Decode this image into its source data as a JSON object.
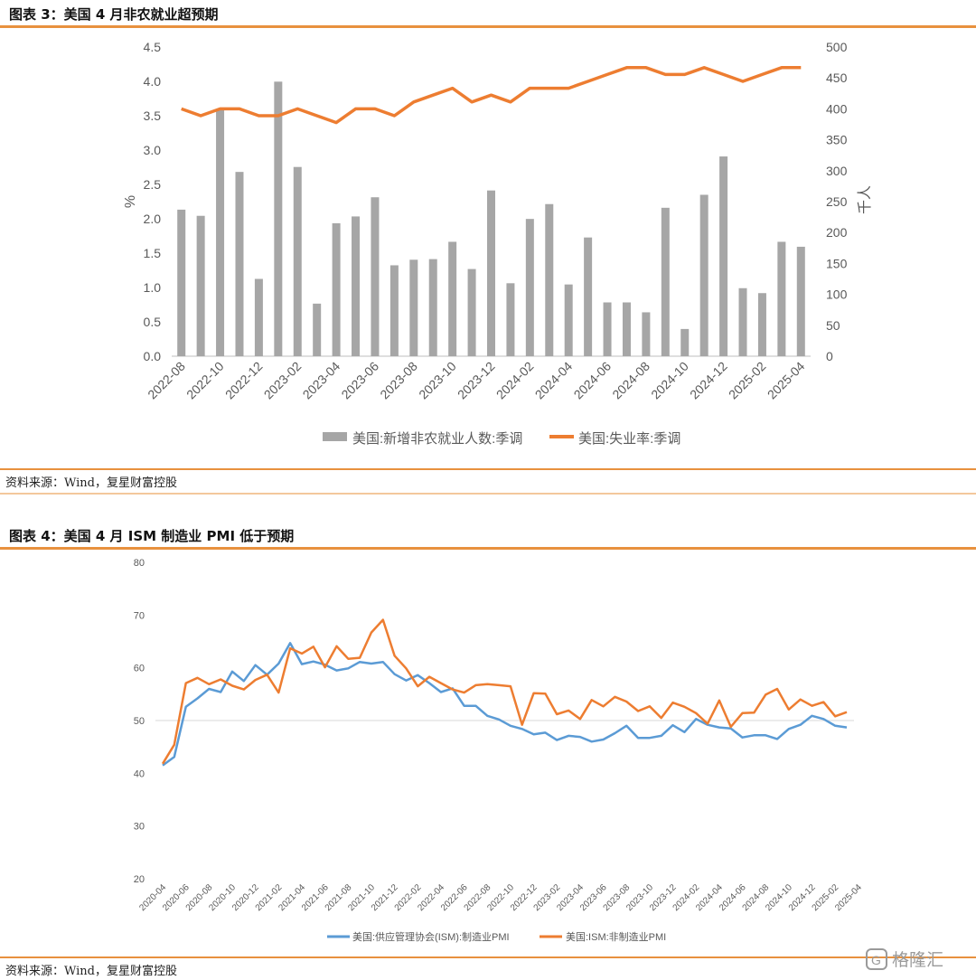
{
  "figure3": {
    "title": "图表 3：美国 4 月非农就业超预期",
    "source": "资料来源：Wind，复星财富控股",
    "chart_data": {
      "type": "bar+line",
      "y_left_label": "%",
      "y_right_label": "千人",
      "y_left_ticks": [
        "0.0",
        "0.5",
        "1.0",
        "1.5",
        "2.0",
        "2.5",
        "3.0",
        "3.5",
        "4.0",
        "4.5"
      ],
      "y_right_ticks": [
        "0",
        "50",
        "100",
        "150",
        "200",
        "250",
        "300",
        "350",
        "400",
        "450",
        "500"
      ],
      "ylim_left": [
        0,
        4.5
      ],
      "ylim_right": [
        0,
        500
      ],
      "x_tick_labels": [
        "2022-08",
        "2022-10",
        "2022-12",
        "2023-02",
        "2023-04",
        "2023-06",
        "2023-08",
        "2023-10",
        "2023-12",
        "2024-02",
        "2024-04",
        "2024-06",
        "2024-08",
        "2024-10",
        "2024-12",
        "2025-02",
        "2025-04"
      ],
      "categories": [
        "2022-08",
        "2022-09",
        "2022-10",
        "2022-11",
        "2022-12",
        "2023-01",
        "2023-02",
        "2023-03",
        "2023-04",
        "2023-05",
        "2023-06",
        "2023-07",
        "2023-08",
        "2023-09",
        "2023-10",
        "2023-11",
        "2023-12",
        "2024-01",
        "2024-02",
        "2024-03",
        "2024-04",
        "2024-05",
        "2024-06",
        "2024-07",
        "2024-08",
        "2024-09",
        "2024-10",
        "2024-11",
        "2024-12",
        "2025-01",
        "2025-02",
        "2025-03",
        "2025-04"
      ],
      "bars": {
        "name": "美国:新增非农就业人数:季调",
        "axis": "right",
        "color": "#A6A6A6",
        "values": [
          237,
          227,
          400,
          298,
          125,
          444,
          306,
          85,
          215,
          226,
          257,
          147,
          156,
          157,
          185,
          141,
          268,
          118,
          222,
          246,
          116,
          192,
          87,
          87,
          71,
          240,
          44,
          261,
          323,
          110,
          102,
          185,
          177
        ]
      },
      "line": {
        "name": "美国:失业率:季调",
        "axis": "left",
        "color": "#ED7D31",
        "values": [
          3.6,
          3.5,
          3.6,
          3.6,
          3.5,
          3.5,
          3.6,
          3.5,
          3.4,
          3.6,
          3.6,
          3.5,
          3.7,
          3.8,
          3.9,
          3.7,
          3.8,
          3.7,
          3.9,
          3.9,
          3.9,
          4.0,
          4.1,
          4.2,
          4.2,
          4.1,
          4.1,
          4.2,
          4.1,
          4.0,
          4.1,
          4.2,
          4.2
        ]
      }
    }
  },
  "figure4": {
    "title": "图表 4：美国 4 月 ISM 制造业 PMI 低于预期",
    "source": "资料来源：Wind，复星财富控股",
    "chart_data": {
      "type": "line",
      "y_ticks": [
        "20",
        "30",
        "40",
        "50",
        "60",
        "70",
        "80"
      ],
      "ylim": [
        20,
        80
      ],
      "reference_line": 50,
      "x_tick_labels": [
        "2020-04",
        "2020-06",
        "2020-08",
        "2020-10",
        "2020-12",
        "2021-02",
        "2021-04",
        "2021-06",
        "2021-08",
        "2021-10",
        "2021-12",
        "2022-02",
        "2022-04",
        "2022-06",
        "2022-08",
        "2022-10",
        "2022-12",
        "2023-02",
        "2023-04",
        "2023-06",
        "2023-08",
        "2023-10",
        "2023-12",
        "2024-02",
        "2024-04",
        "2024-06",
        "2024-08",
        "2024-10",
        "2024-12",
        "2025-02",
        "2025-04"
      ],
      "start_month": "2020-04",
      "series": [
        {
          "name": "美国:供应管理协会(ISM):制造业PMI",
          "color": "#5B9BD5",
          "values": [
            41.5,
            43.1,
            52.6,
            54.2,
            56.0,
            55.4,
            59.3,
            57.5,
            60.5,
            58.7,
            60.8,
            64.7,
            60.7,
            61.2,
            60.6,
            59.5,
            59.9,
            61.1,
            60.8,
            61.1,
            58.8,
            57.6,
            58.6,
            57.1,
            55.4,
            56.1,
            52.8,
            52.8,
            50.9,
            50.2,
            49.0,
            48.4,
            47.4,
            47.7,
            46.3,
            47.1,
            46.9,
            46.0,
            46.4,
            47.6,
            49.0,
            46.7,
            46.7,
            47.1,
            49.1,
            47.8,
            50.3,
            49.2,
            48.7,
            48.5,
            46.8,
            47.2,
            47.2,
            46.5,
            48.4,
            49.2,
            50.9,
            50.3,
            49.0,
            48.7
          ]
        },
        {
          "name": "美国:ISM:非制造业PMI",
          "color": "#ED7D31",
          "values": [
            41.8,
            45.4,
            57.1,
            58.1,
            56.9,
            57.8,
            56.6,
            55.9,
            57.7,
            58.7,
            55.3,
            63.7,
            62.7,
            64.0,
            60.1,
            64.1,
            61.7,
            61.9,
            66.7,
            69.1,
            62.3,
            59.9,
            56.5,
            58.3,
            57.1,
            55.9,
            55.3,
            56.7,
            56.9,
            56.7,
            56.5,
            49.2,
            55.2,
            55.1,
            51.2,
            51.9,
            50.3,
            53.9,
            52.7,
            54.5,
            53.6,
            51.8,
            52.7,
            50.5,
            53.4,
            52.6,
            51.4,
            49.4,
            53.8,
            48.8,
            51.4,
            51.5,
            54.9,
            56.0,
            52.1,
            54.0,
            52.8,
            53.5,
            50.8,
            51.6
          ]
        }
      ]
    }
  },
  "watermark": {
    "text": "格隆汇"
  }
}
